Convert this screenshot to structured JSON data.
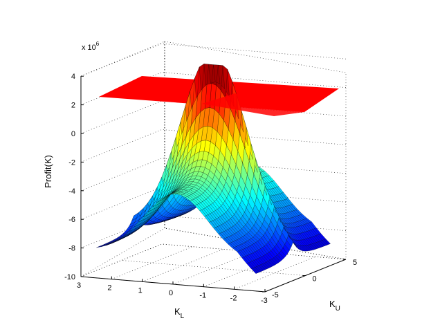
{
  "chart_data": {
    "type": "surface",
    "title": "",
    "zlabel": "Profit(K)",
    "xlabel_main": "K",
    "xlabel_sub": "L",
    "ylabel_main": "K",
    "ylabel_sub": "U",
    "z_exponent_base": "x 10",
    "z_exponent_power": "6",
    "z_ticks": [
      "4",
      "2",
      "0",
      "-2",
      "-4",
      "-6",
      "-8",
      "-10"
    ],
    "z_tick_values": [
      4,
      2,
      0,
      -2,
      -4,
      -6,
      -8,
      -10
    ],
    "kl_ticks": [
      "3",
      "2",
      "1",
      "0",
      "-1",
      "-2",
      "-3"
    ],
    "kl_tick_values": [
      3,
      2,
      1,
      0,
      -1,
      -2,
      -3
    ],
    "ku_ticks": [
      "-5",
      "0",
      "5"
    ],
    "ku_tick_values": [
      -5,
      0,
      5
    ],
    "xlim": [
      -3,
      3
    ],
    "ylim": [
      -5,
      5
    ],
    "zlim": [
      -10,
      4
    ],
    "zscale": 1000000,
    "reference_plane": {
      "z": 2.5,
      "color": "#ff0000"
    },
    "surface_peak": {
      "kl": 0,
      "ku": 0,
      "z": 4.2
    },
    "colormap": "jet",
    "grid": true
  }
}
